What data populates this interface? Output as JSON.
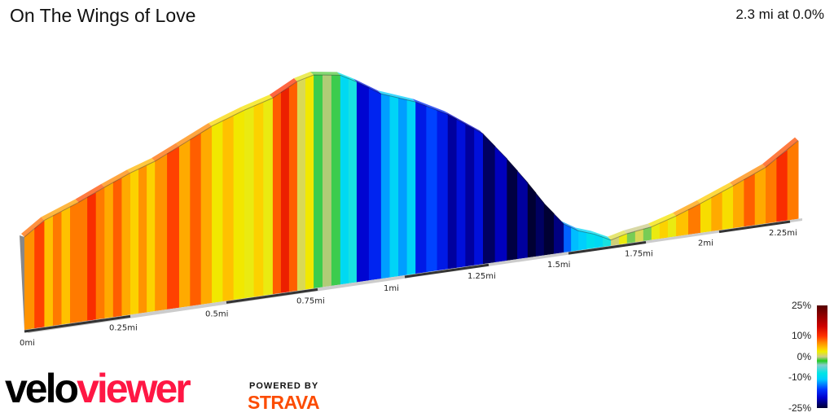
{
  "header": {
    "title": "On The Wings of Love",
    "summary": "2.3 mi at 0.0%"
  },
  "chart_data": {
    "type": "area",
    "title": "On The Wings of Love",
    "xlabel": "",
    "ylabel": "",
    "x_unit": "mi",
    "xlim": [
      0,
      2.3
    ],
    "x_ticks": [
      "0mi",
      "0.25mi",
      "0.5mi",
      "0.75mi",
      "1mi",
      "1.25mi",
      "1.5mi",
      "1.75mi",
      "2mi",
      "2.25mi"
    ],
    "x_tick_values": [
      0,
      0.25,
      0.5,
      0.75,
      1,
      1.25,
      1.5,
      1.75,
      2,
      2.25
    ],
    "profile": {
      "distance": [
        0,
        0.047,
        0.128,
        0.189,
        0.25,
        0.314,
        0.377,
        0.462,
        0.549,
        0.627,
        0.694,
        0.739,
        0.815,
        0.862,
        0.932,
        1.032,
        1.128,
        1.233,
        1.307,
        1.372,
        1.423,
        1.485,
        1.532,
        1.584,
        1.637,
        1.689,
        1.769,
        1.853,
        1.936,
        2.049,
        2.164,
        2.3
      ],
      "relative_elevation": [
        114,
        131,
        147,
        161,
        174,
        184,
        198,
        217,
        231,
        241,
        257,
        262,
        257,
        246,
        227,
        211,
        190,
        160,
        125,
        92,
        64,
        35,
        24,
        17,
        7,
        12,
        16,
        25,
        36,
        52,
        69,
        96
      ],
      "segment_grade_pct": [
        14,
        12,
        15,
        13,
        11,
        14,
        13,
        9,
        8,
        16,
        6,
        1,
        -6,
        -18,
        -10,
        -16,
        -20,
        -22,
        -23,
        -25,
        -24,
        -12,
        -8,
        -6,
        5,
        3,
        8,
        12,
        10,
        13,
        15
      ]
    },
    "legend": {
      "placement": "bottom-right",
      "labels": [
        "25%",
        "10%",
        "0%",
        "-10%",
        "-25%"
      ],
      "values": [
        25,
        10,
        0,
        -10,
        -25
      ]
    }
  },
  "branding": {
    "logo_part1": "velo",
    "logo_part2": "viewer",
    "powered_by": "POWERED BY",
    "strava": "STRAVA"
  }
}
